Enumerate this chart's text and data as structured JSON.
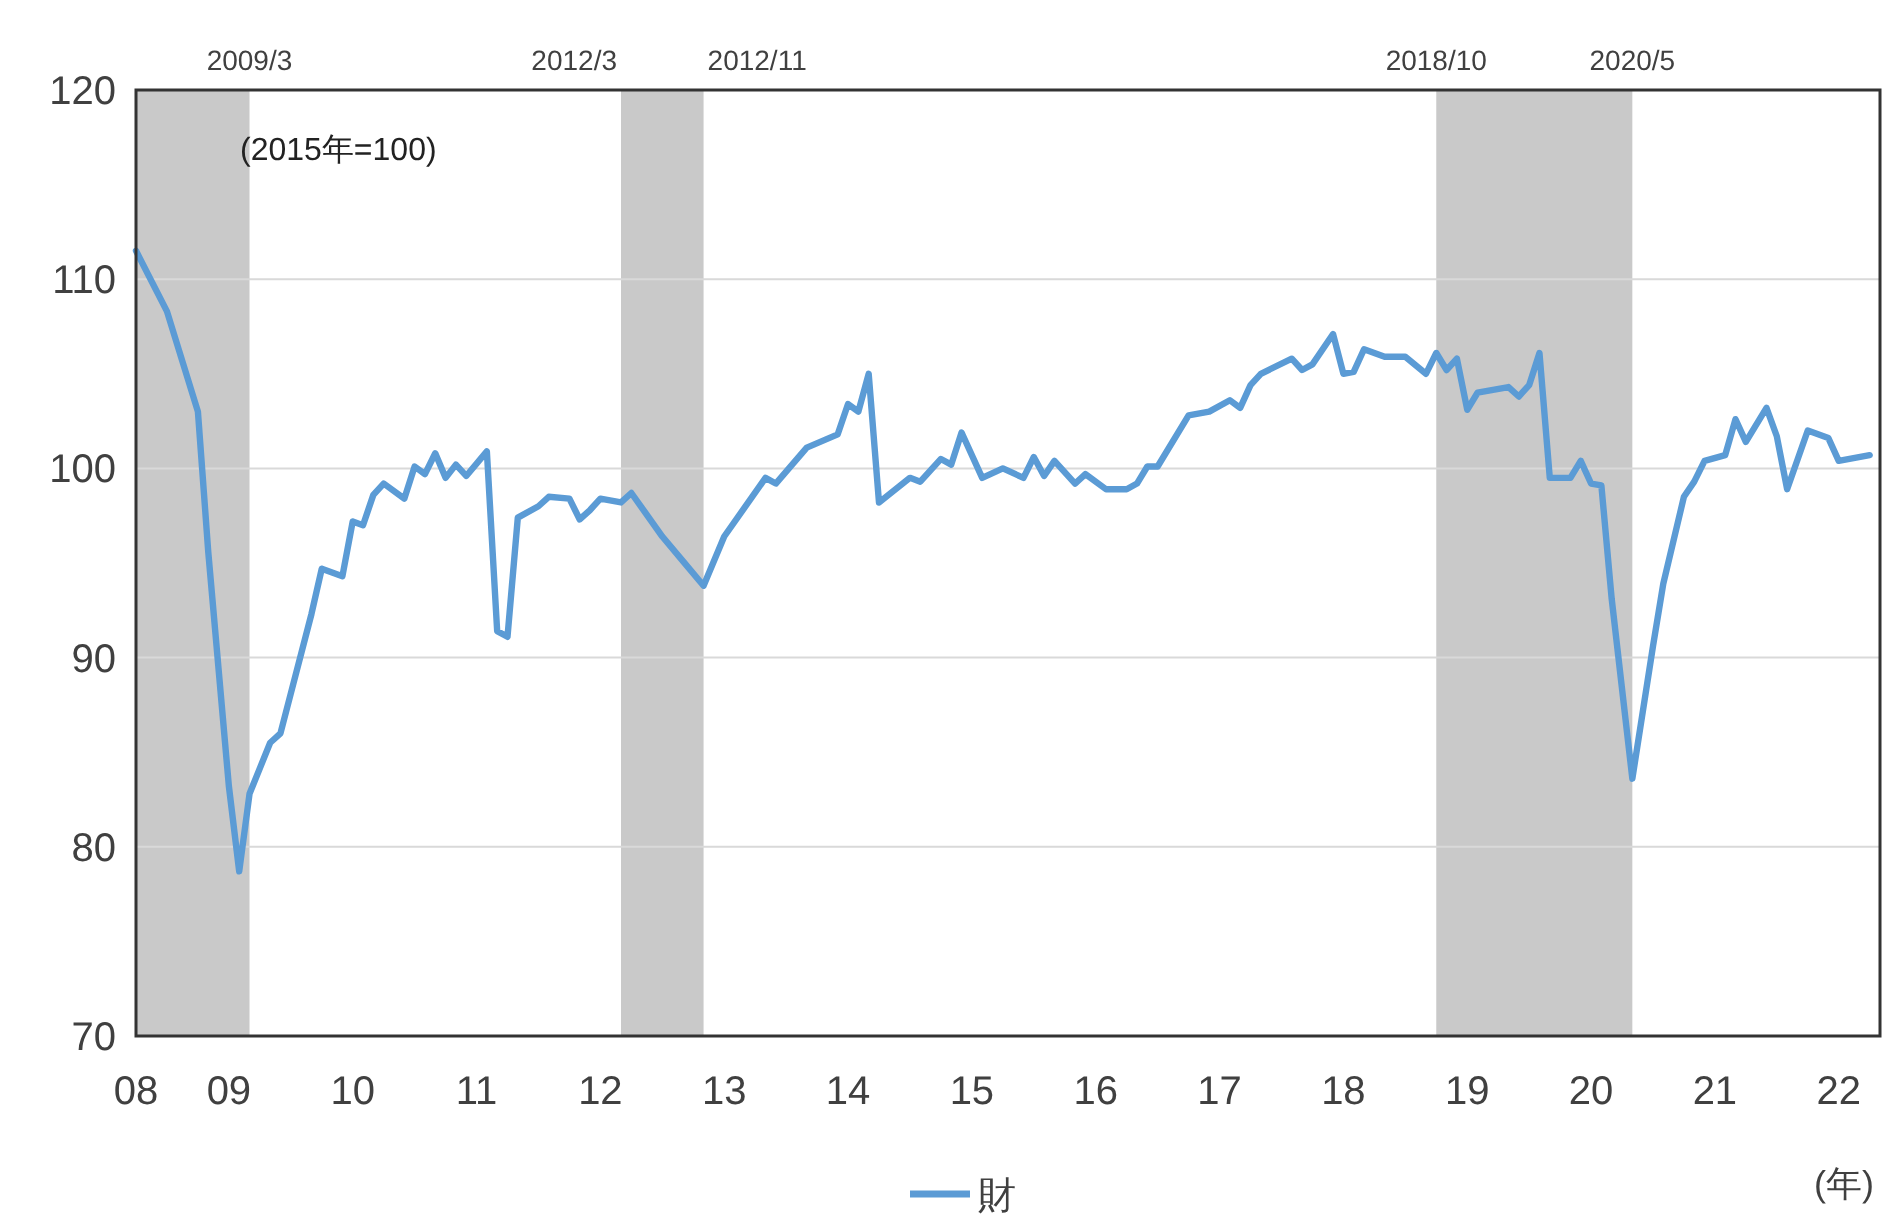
{
  "chart_data": {
    "type": "line",
    "xlabel": "(年)",
    "annotations": [
      "(2015年=100)",
      {
        "text": "2009/3",
        "x": "2009-03",
        "y": 120
      },
      {
        "text": "2012/3",
        "x": "2012-03",
        "y": 120
      },
      {
        "text": "2012/11",
        "x": "2012-11",
        "y": 120
      },
      {
        "text": "2018/10",
        "x": "2018-10",
        "y": 120
      },
      {
        "text": "2020/5",
        "x": "2020-05",
        "y": 120
      }
    ],
    "series": [
      {
        "name": "財",
        "color": "#5b9bd5",
        "x": [
          "2008-04",
          "2008-07",
          "2008-10",
          "2008-11",
          "2009-01",
          "2009-02",
          "2009-03",
          "2009-05",
          "2009-06",
          "2009-07",
          "2009-09",
          "2009-10",
          "2009-12",
          "2010-01",
          "2010-02",
          "2010-03",
          "2010-04",
          "2010-06",
          "2010-07",
          "2010-08",
          "2010-09",
          "2010-10",
          "2010-11",
          "2010-12",
          "2011-02",
          "2011-03",
          "2011-04",
          "2011-05",
          "2011-07",
          "2011-08",
          "2011-10",
          "2011-11",
          "2011-12",
          "2012-01",
          "2012-03",
          "2012-04",
          "2012-07",
          "2012-09",
          "2012-11",
          "2013-01",
          "2013-05",
          "2013-06",
          "2013-09",
          "2013-12",
          "2014-01",
          "2014-02",
          "2014-03",
          "2014-04",
          "2014-07",
          "2014-08",
          "2014-10",
          "2014-11",
          "2014-12",
          "2015-02",
          "2015-04",
          "2015-06",
          "2015-07",
          "2015-08",
          "2015-09",
          "2015-11",
          "2015-12",
          "2016-02",
          "2016-04",
          "2016-05",
          "2016-06",
          "2016-07",
          "2016-10",
          "2016-12",
          "2017-02",
          "2017-03",
          "2017-04",
          "2017-05",
          "2017-08",
          "2017-09",
          "2017-10",
          "2017-12",
          "2018-01",
          "2018-02",
          "2018-03",
          "2018-05",
          "2018-07",
          "2018-09",
          "2018-10",
          "2018-11",
          "2018-12",
          "2019-01",
          "2019-02",
          "2019-05",
          "2019-06",
          "2019-07",
          "2019-08",
          "2019-09",
          "2019-11",
          "2019-12",
          "2020-01",
          "2020-02",
          "2020-03",
          "2020-05",
          "2020-07",
          "2020-08",
          "2020-10",
          "2020-11",
          "2020-12",
          "2021-02",
          "2021-03",
          "2021-04",
          "2021-06",
          "2021-07",
          "2021-08",
          "2021-10",
          "2021-12",
          "2022-01",
          "2022-04"
        ],
        "values": [
          111.5,
          108.3,
          103,
          95.6,
          83.2,
          78.7,
          82.8,
          85.5,
          86,
          88.1,
          92.3,
          94.7,
          94.3,
          97.2,
          97,
          98.6,
          99.2,
          98.4,
          100.1,
          99.7,
          100.8,
          99.5,
          100.2,
          99.6,
          100.9,
          91.4,
          91.1,
          97.4,
          98,
          98.5,
          98.4,
          97.3,
          97.8,
          98.4,
          98.2,
          98.7,
          96.4,
          95.1,
          93.8,
          96.4,
          99.5,
          99.2,
          101.1,
          101.8,
          103.4,
          103,
          105,
          98.2,
          99.5,
          99.3,
          100.5,
          100.2,
          101.9,
          99.5,
          100,
          99.5,
          100.6,
          99.6,
          100.4,
          99.2,
          99.7,
          98.9,
          98.9,
          99.2,
          100.1,
          100.1,
          102.8,
          103,
          103.6,
          103.2,
          104.4,
          105,
          105.8,
          105.2,
          105.5,
          107.1,
          105,
          105.1,
          106.3,
          105.9,
          105.9,
          105,
          106.1,
          105.2,
          105.8,
          103.1,
          104,
          104.3,
          103.8,
          104.4,
          106.1,
          99.5,
          99.5,
          100.4,
          99.2,
          99.1,
          93.1,
          83.6,
          90.6,
          93.9,
          98.5,
          99.3,
          100.4,
          100.7,
          102.6,
          101.4,
          103.2,
          101.7,
          98.9,
          102,
          101.6,
          100.4,
          100.7
        ]
      }
    ],
    "xlim": [
      "2008-04",
      "2022-05"
    ],
    "xticks": [
      {
        "value": "2008-04",
        "label": "08"
      },
      {
        "value": "2009-01",
        "label": "09"
      },
      {
        "value": "2010-01",
        "label": "10"
      },
      {
        "value": "2011-01",
        "label": "11"
      },
      {
        "value": "2012-01",
        "label": "12"
      },
      {
        "value": "2013-01",
        "label": "13"
      },
      {
        "value": "2014-01",
        "label": "14"
      },
      {
        "value": "2015-01",
        "label": "15"
      },
      {
        "value": "2016-01",
        "label": "16"
      },
      {
        "value": "2017-01",
        "label": "17"
      },
      {
        "value": "2018-01",
        "label": "18"
      },
      {
        "value": "2019-01",
        "label": "19"
      },
      {
        "value": "2020-01",
        "label": "20"
      },
      {
        "value": "2021-01",
        "label": "21"
      },
      {
        "value": "2022-01",
        "label": "22"
      }
    ],
    "ylim": [
      70,
      120
    ],
    "yticks": [
      70,
      80,
      90,
      100,
      110,
      120
    ],
    "grid": "y",
    "legend": "bottom",
    "bands": [
      {
        "axis": "x",
        "from": "2008-04",
        "to": "2009-03",
        "color": "#c9c9c9"
      },
      {
        "axis": "x",
        "from": "2012-03",
        "to": "2012-11",
        "color": "#c9c9c9"
      },
      {
        "axis": "x",
        "from": "2018-10",
        "to": "2020-05",
        "color": "#c9c9c9"
      }
    ]
  }
}
